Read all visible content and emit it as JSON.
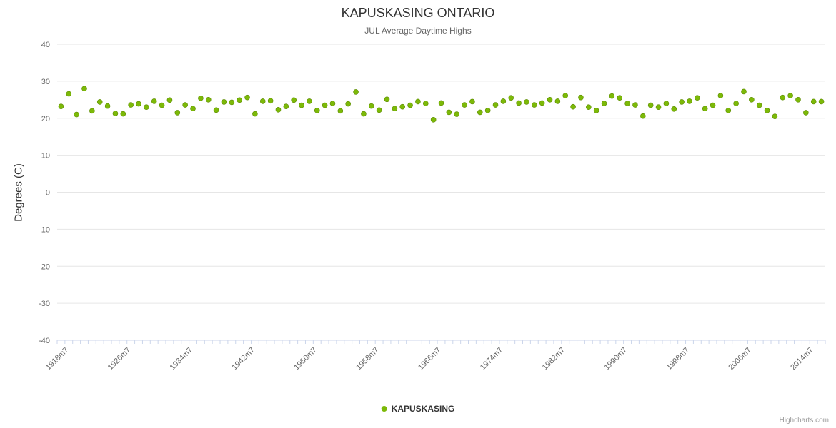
{
  "chart": {
    "title": "KAPUSKASING ONTARIO",
    "subtitle": "JUL Average Daytime Highs",
    "ylabel": "Degrees (C)"
  },
  "legend": {
    "label": "KAPUSKASING"
  },
  "credits": {
    "text": "Highcharts.com"
  },
  "colors": {
    "series": "#7cb908",
    "series_border": "#5c8a00",
    "grid": "#e6e6e6",
    "axis": "#ccd6eb",
    "title": "#333333",
    "subtitle": "#666666",
    "labels": "#666666",
    "credits": "#999999"
  },
  "chart_data": {
    "type": "scatter",
    "title": "KAPUSKASING ONTARIO",
    "subtitle": "JUL Average Daytime Highs",
    "xlabel": "",
    "ylabel": "Degrees (C)",
    "series_name": "KAPUSKASING",
    "ylim": [
      -40,
      40
    ],
    "yticks": [
      40,
      30,
      20,
      10,
      0,
      -10,
      -20,
      -30,
      -40
    ],
    "grid": true,
    "legend_position": "bottom-center",
    "xtick_labels": [
      "1918m7",
      "1926m7",
      "1934m7",
      "1942m7",
      "1950m7",
      "1958m7",
      "1966m7",
      "1974m7",
      "1982m7",
      "1990m7",
      "1998m7",
      "2006m7",
      "2014m7"
    ],
    "categories": [
      "1917m7",
      "1918m7",
      "1919m7",
      "1920m7",
      "1921m7",
      "1922m7",
      "1923m7",
      "1924m7",
      "1925m7",
      "1926m7",
      "1927m7",
      "1928m7",
      "1929m7",
      "1930m7",
      "1931m7",
      "1932m7",
      "1933m7",
      "1934m7",
      "1935m7",
      "1936m7",
      "1937m7",
      "1938m7",
      "1939m7",
      "1940m7",
      "1941m7",
      "1942m7",
      "1943m7",
      "1944m7",
      "1945m7",
      "1946m7",
      "1947m7",
      "1948m7",
      "1949m7",
      "1950m7",
      "1951m7",
      "1952m7",
      "1953m7",
      "1954m7",
      "1955m7",
      "1956m7",
      "1957m7",
      "1958m7",
      "1959m7",
      "1960m7",
      "1961m7",
      "1962m7",
      "1963m7",
      "1964m7",
      "1965m7",
      "1966m7",
      "1967m7",
      "1968m7",
      "1969m7",
      "1970m7",
      "1971m7",
      "1972m7",
      "1973m7",
      "1974m7",
      "1975m7",
      "1976m7",
      "1977m7",
      "1978m7",
      "1979m7",
      "1980m7",
      "1981m7",
      "1982m7",
      "1983m7",
      "1984m7",
      "1985m7",
      "1986m7",
      "1987m7",
      "1988m7",
      "1989m7",
      "1990m7",
      "1991m7",
      "1992m7",
      "1993m7",
      "1994m7",
      "1995m7",
      "1996m7",
      "1997m7",
      "1998m7",
      "1999m7",
      "2000m7",
      "2001m7",
      "2002m7",
      "2003m7",
      "2004m7",
      "2005m7",
      "2006m7",
      "2007m7",
      "2008m7",
      "2009m7",
      "2010m7",
      "2011m7",
      "2012m7",
      "2013m7",
      "2014m7",
      "2015m7"
    ],
    "values": [
      23.2,
      26.6,
      21.0,
      28.0,
      22.0,
      24.4,
      23.3,
      21.3,
      21.2,
      23.6,
      23.9,
      23.0,
      24.6,
      23.5,
      24.9,
      21.5,
      23.6,
      22.6,
      25.4,
      25.0,
      22.2,
      24.4,
      24.3,
      24.9,
      25.6,
      21.2,
      24.6,
      24.7,
      22.3,
      23.2,
      24.9,
      23.5,
      24.6,
      22.1,
      23.5,
      24.0,
      22.0,
      23.9,
      27.1,
      21.2,
      23.3,
      22.2,
      25.1,
      22.6,
      23.1,
      23.5,
      24.5,
      24.0,
      19.6,
      24.1,
      21.6,
      21.1,
      23.6,
      24.5,
      21.6,
      22.1,
      23.6,
      24.6,
      25.5,
      24.1,
      24.4,
      23.6,
      24.1,
      25.0,
      24.6,
      26.1,
      23.1,
      25.6,
      23.0,
      22.1,
      24.0,
      26.0,
      25.5,
      24.0,
      23.6,
      20.6,
      23.5,
      23.0,
      24.0,
      22.5,
      24.4,
      24.6,
      25.5,
      22.6,
      23.5,
      26.1,
      22.1,
      24.0,
      27.2,
      25.0,
      23.5,
      22.1,
      20.5,
      25.6,
      26.1,
      25.0,
      21.5,
      24.5,
      24.5
    ]
  }
}
